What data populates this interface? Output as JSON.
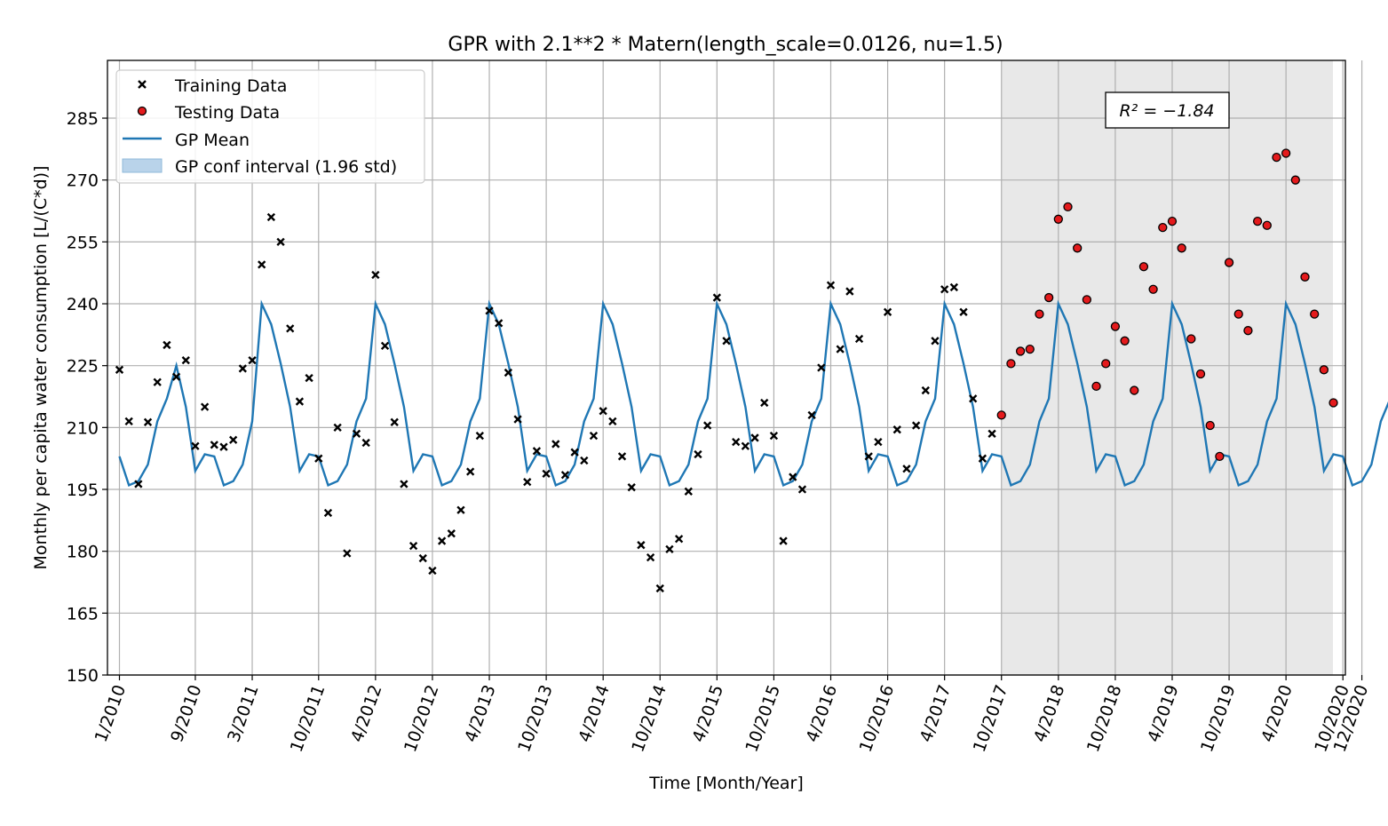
{
  "chart_data": {
    "type": "scatter",
    "title": "GPR with 2.1**2 * Matern(length_scale=0.0126, nu=1.5)",
    "xlabel": "Time [Month/Year]",
    "ylabel": "Monthly per capita water consumption [L/(C*d)]",
    "xlim": [
      "2009-12",
      "2021-01"
    ],
    "ylim": [
      150,
      299
    ],
    "yticks": [
      150,
      165,
      180,
      195,
      210,
      225,
      240,
      255,
      270,
      285
    ],
    "xticks": [
      {
        "date": "2010-01",
        "label": "1/2010"
      },
      {
        "date": "2010-09",
        "label": "9/2010"
      },
      {
        "date": "2011-03",
        "label": "3/2011"
      },
      {
        "date": "2011-10",
        "label": "10/2011"
      },
      {
        "date": "2012-04",
        "label": "4/2012"
      },
      {
        "date": "2012-10",
        "label": "10/2012"
      },
      {
        "date": "2013-04",
        "label": "4/2013"
      },
      {
        "date": "2013-10",
        "label": "10/2013"
      },
      {
        "date": "2014-04",
        "label": "4/2014"
      },
      {
        "date": "2014-10",
        "label": "10/2014"
      },
      {
        "date": "2015-04",
        "label": "4/2015"
      },
      {
        "date": "2015-10",
        "label": "10/2015"
      },
      {
        "date": "2016-04",
        "label": "4/2016"
      },
      {
        "date": "2016-10",
        "label": "10/2016"
      },
      {
        "date": "2017-04",
        "label": "4/2017"
      },
      {
        "date": "2017-10",
        "label": "10/2017"
      },
      {
        "date": "2018-04",
        "label": "4/2018"
      },
      {
        "date": "2018-10",
        "label": "10/2018"
      },
      {
        "date": "2019-04",
        "label": "4/2019"
      },
      {
        "date": "2019-10",
        "label": "10/2019"
      },
      {
        "date": "2020-04",
        "label": "4/2020"
      },
      {
        "date": "2020-10",
        "label": "10/2020"
      },
      {
        "date": "2020-12",
        "label": "12/2020"
      }
    ],
    "grid": true,
    "legend_position": "top-left",
    "annotation": {
      "text": "R² = −1.84",
      "position": "top-right"
    },
    "test_region": {
      "start": "2017-07",
      "end": "2020-12",
      "color": "#e8e8e8"
    },
    "start_date": "2010-01",
    "series": [
      {
        "name": "Training Data",
        "kind": "scatter",
        "marker": "x",
        "color": "#000000",
        "values": [
          224.0,
          211.5,
          196.3,
          211.3,
          221.0,
          230.0,
          222.3,
          226.3,
          205.5,
          215.0,
          205.8,
          205.3,
          207.0,
          224.3,
          226.3,
          249.5,
          261.0,
          255.0,
          234.0,
          216.3,
          222.0,
          202.5,
          189.3,
          210.0,
          179.5,
          208.5,
          206.3,
          247.0,
          229.8,
          211.3,
          196.3,
          181.3,
          178.3,
          175.3,
          182.5,
          184.3,
          190.0,
          199.3,
          208.0,
          238.3,
          235.3,
          223.3,
          212.0,
          196.8,
          204.3,
          198.8,
          206.0,
          198.5,
          204.0,
          202.0,
          208.0,
          214.0,
          211.5,
          203.0,
          195.5,
          181.5,
          178.5,
          171.0,
          180.5,
          183.0,
          194.5,
          203.5,
          210.5,
          241.5,
          231.0,
          206.5,
          205.5,
          207.5,
          216.0,
          208.0,
          182.5,
          198.0,
          195.0,
          213.0,
          224.5,
          244.5,
          229.0,
          243.0,
          231.5,
          203.0,
          206.5,
          238.0,
          209.5,
          200.0,
          210.5,
          219.0,
          231.0,
          243.5,
          244.0,
          238.0,
          217.0,
          202.5,
          208.5
        ]
      },
      {
        "name": "Testing Data",
        "kind": "scatter",
        "marker": "o",
        "color": "#e41a1c",
        "start_index": 93,
        "values": [
          213.0,
          225.5,
          228.5,
          229.0,
          237.5,
          241.5,
          260.5,
          263.5,
          253.5,
          241.0,
          220.0,
          225.5,
          234.5,
          231.0,
          219.0,
          249.0,
          243.5,
          258.5,
          260.0,
          253.5,
          231.5,
          223.0,
          210.5,
          203.0,
          250.0,
          237.5,
          233.5,
          260.0,
          259.0,
          275.5,
          276.5,
          270.0,
          246.5,
          237.5,
          224.0,
          216.0
        ]
      },
      {
        "name": "GP Mean",
        "kind": "line",
        "color": "#1f77b4",
        "pattern": [
          203.0,
          196.0,
          197.0,
          201.0,
          211.5,
          217.0,
          225.0,
          215.0,
          199.5,
          203.5,
          203.0,
          196.0,
          197.0,
          201.0,
          211.5,
          240.0,
          235.0,
          225.5,
          215.0,
          199.5,
          203.5,
          203.0,
          196.0,
          197.0,
          201.0,
          211.5,
          217.0,
          240.0,
          235.0,
          225.5,
          215.0,
          199.5,
          203.5,
          203.0,
          196.0,
          197.0,
          201.0,
          211.5,
          217.0,
          240.0,
          235.0,
          225.5,
          215.0,
          199.5,
          203.5,
          203.0,
          196.0,
          197.0,
          201.0,
          211.5,
          217.0,
          240.0,
          235.0,
          225.5,
          215.0,
          199.5,
          203.5,
          203.0,
          196.0,
          197.0,
          201.0,
          211.5,
          217.0,
          240.0,
          235.0,
          225.5,
          215.0,
          199.5,
          203.5,
          203.0,
          196.0,
          197.0,
          201.0,
          211.5,
          217.0,
          240.0,
          235.0,
          225.5,
          215.0,
          199.5,
          203.5,
          203.0,
          196.0,
          197.0,
          201.0,
          211.5,
          217.0,
          240.0,
          235.0,
          225.5,
          215.0,
          199.5,
          203.5,
          203.0,
          196.0,
          197.0,
          201.0,
          211.5,
          217.0,
          240.0,
          235.0,
          225.5,
          215.0,
          199.5,
          203.5,
          203.0,
          196.0,
          197.0,
          201.0,
          211.5,
          217.0,
          240.0,
          235.0,
          225.5,
          215.0,
          199.5,
          203.5,
          203.0,
          196.0,
          197.0,
          201.0,
          211.5,
          217.0,
          240.0,
          235.0,
          225.5,
          215.0,
          199.5,
          203.5,
          203.0,
          196.0,
          197.0,
          201.0,
          211.5,
          217.0,
          240.0,
          235.0,
          225.5,
          215.0,
          199.5,
          203.5
        ]
      },
      {
        "name": "GP conf interval (1.96 std)",
        "kind": "area",
        "color": "#b9d3ea"
      }
    ]
  }
}
